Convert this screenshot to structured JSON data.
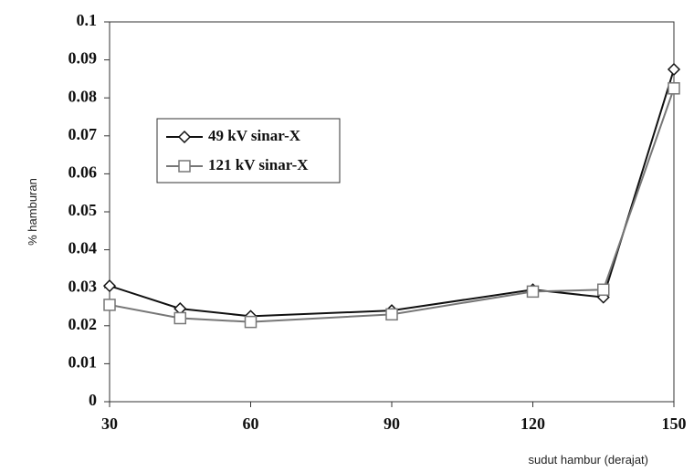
{
  "chart_data": {
    "type": "line",
    "y_label": "% hamburan",
    "x_label": "sudut hambur (derajat)",
    "x": [
      30,
      45,
      60,
      90,
      120,
      135,
      150
    ],
    "series": [
      {
        "name": "49 kV sinar-X",
        "color": "#111111",
        "marker": "diamond",
        "values": [
          0.0305,
          0.0245,
          0.0225,
          0.024,
          0.0295,
          0.0275,
          0.0875
        ]
      },
      {
        "name": "121 kV sinar-X",
        "color": "#777777",
        "marker": "square",
        "values": [
          0.0255,
          0.022,
          0.021,
          0.023,
          0.029,
          0.0295,
          0.0825
        ]
      }
    ],
    "xlim": [
      30,
      150
    ],
    "xticks": [
      30,
      60,
      90,
      120,
      150
    ],
    "ylim": [
      0,
      0.1
    ],
    "yticks": [
      0,
      0.01,
      0.02,
      0.03,
      0.04,
      0.05,
      0.06,
      0.07,
      0.08,
      0.09,
      0.1
    ]
  }
}
